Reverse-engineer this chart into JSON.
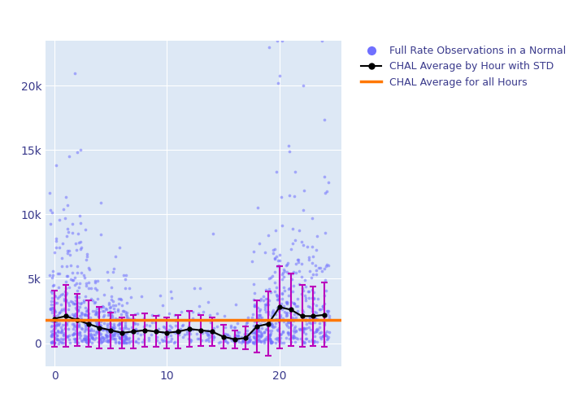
{
  "title": "",
  "xlabel": "",
  "ylabel": "",
  "xlim": [
    -0.8,
    25.5
  ],
  "ylim": [
    -1800,
    23500
  ],
  "yticks": [
    0,
    5000,
    10000,
    15000,
    20000
  ],
  "ytick_labels": [
    "0",
    "5k",
    "10k",
    "15k",
    "20k"
  ],
  "xticks": [
    0,
    10,
    20
  ],
  "scatter_color": "#7070ff",
  "scatter_alpha": 0.55,
  "scatter_size": 7,
  "line_color": "black",
  "line_marker": "o",
  "line_marker_size": 3.5,
  "errorbar_color": "#bb00bb",
  "hline_color": "#ff7700",
  "hline_value": 1800,
  "hline_linewidth": 2.5,
  "background_color": "#dde8f5",
  "fig_background": "#ffffff",
  "legend_labels": [
    "Full Rate Observations in a Normal Point",
    "CHAL Average by Hour with STD",
    "CHAL Average for all Hours"
  ],
  "grid_color": "#ffffff",
  "hour_means": [
    1900,
    2100,
    1800,
    1500,
    1200,
    1000,
    800,
    900,
    1000,
    900,
    800,
    900,
    1100,
    1000,
    900,
    500,
    300,
    400,
    1300,
    1500,
    2800,
    2600,
    2100,
    2100,
    2200
  ],
  "hour_stds": [
    2200,
    2400,
    2000,
    1800,
    1600,
    1400,
    1200,
    1300,
    1300,
    1200,
    1200,
    1300,
    1400,
    1200,
    1100,
    900,
    700,
    900,
    2000,
    2500,
    3200,
    2800,
    2400,
    2300,
    2500
  ],
  "seed": 42
}
